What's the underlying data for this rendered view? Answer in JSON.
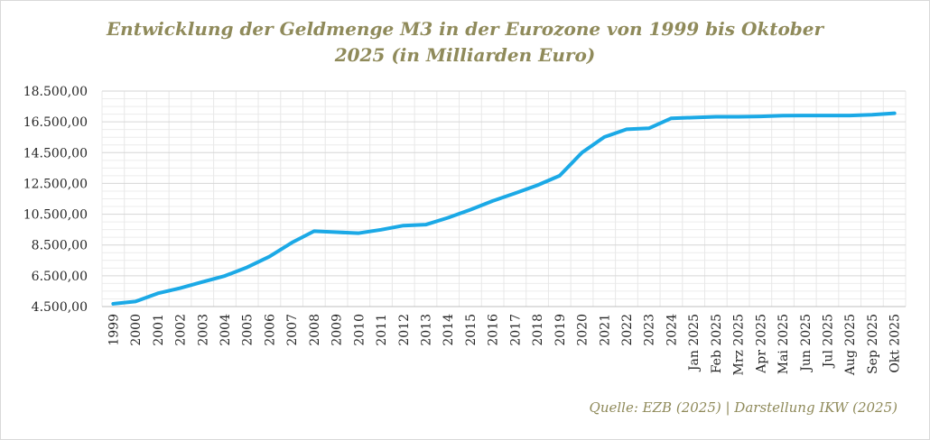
{
  "chart_data": {
    "type": "line",
    "title_line1": "Entwicklung der Geldmenge M3 in der Eurozone von 1999 bis Oktober",
    "title_line2": "2025 (in Milliarden Euro)",
    "source": "Quelle: EZB (2025) | Darstellung IKW (2025)",
    "xlabel": "",
    "ylabel": "",
    "ylim": [
      4500,
      18500
    ],
    "yticks": [
      "4.500,00",
      "6.500,00",
      "8.500,00",
      "10.500,00",
      "12.500,00",
      "14.500,00",
      "16.500,00",
      "18.500,00"
    ],
    "ytick_values": [
      4500,
      6500,
      8500,
      10500,
      12500,
      14500,
      16500,
      18500
    ],
    "grid": true,
    "line_color": "#1ba9e6",
    "categories": [
      "1999",
      "2000",
      "2001",
      "2002",
      "2003",
      "2004",
      "2005",
      "2006",
      "2007",
      "2008",
      "2009",
      "2010",
      "2011",
      "2012",
      "2013",
      "2014",
      "2015",
      "2016",
      "2017",
      "2018",
      "2019",
      "2020",
      "2021",
      "2022",
      "2023",
      "2024",
      "Jan 2025",
      "Feb 2025",
      "Mrz 2025",
      "Apr 2025",
      "Mai 2025",
      "Jun 2025",
      "Jul 2025",
      "Aug 2025",
      "Sep 2025",
      "Okt 2025"
    ],
    "series": [
      {
        "name": "Geldmenge M3",
        "values": [
          4680,
          4830,
          5360,
          5700,
          6100,
          6490,
          7050,
          7750,
          8650,
          9400,
          9330,
          9270,
          9490,
          9760,
          9820,
          10270,
          10790,
          11360,
          11860,
          12380,
          13000,
          14500,
          15510,
          16020,
          16080,
          16730,
          16780,
          16830,
          16830,
          16850,
          16900,
          16910,
          16910,
          16910,
          16960,
          17060
        ]
      }
    ]
  }
}
